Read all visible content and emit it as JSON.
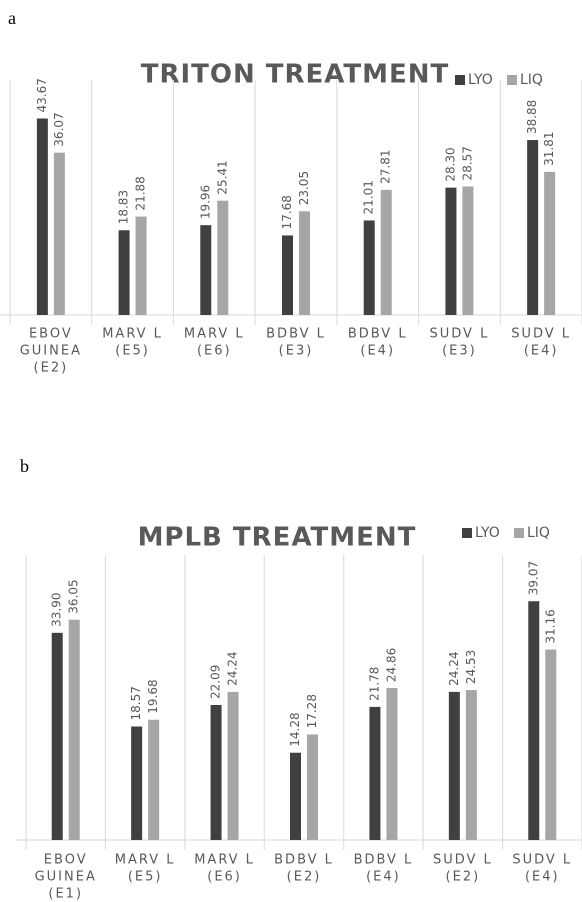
{
  "panel_labels": [
    "a",
    "b"
  ],
  "chart_data": [
    {
      "type": "bar",
      "title": "TRITON TREATMENT",
      "categories": [
        [
          "EBOV",
          "GUINEA",
          "(E2)"
        ],
        [
          "MARV L",
          "(E5)"
        ],
        [
          "MARV L",
          "(E6)"
        ],
        [
          "BDBV L",
          "(E3)"
        ],
        [
          "BDBV L",
          "(E4)"
        ],
        [
          "SUDV L",
          "(E3)"
        ],
        [
          "SUDV L",
          "(E4)"
        ]
      ],
      "series": [
        {
          "name": "LYO",
          "color": "#404040",
          "values": [
            43.67,
            18.83,
            19.96,
            17.68,
            21.01,
            28.3,
            38.88
          ],
          "value_labels": [
            "43.67",
            "18.83",
            "19.96",
            "17.68",
            "21.01",
            "28.30",
            "38.88"
          ]
        },
        {
          "name": "LIQ",
          "color": "#a6a6a6",
          "values": [
            36.07,
            21.88,
            25.41,
            23.05,
            27.81,
            28.57,
            31.81
          ],
          "value_labels": [
            "36.07",
            "21.88",
            "25.41",
            "23.05",
            "27.81",
            "28.57",
            "31.81"
          ]
        }
      ],
      "ylim": [
        0,
        50
      ],
      "legend": "top-right"
    },
    {
      "type": "bar",
      "title": "MPLB TREATMENT",
      "categories": [
        [
          "EBOV",
          "GUINEA",
          "(E1)"
        ],
        [
          "MARV L",
          "(E5)"
        ],
        [
          "MARV L",
          "(E6)"
        ],
        [
          "BDBV L",
          "(E2)"
        ],
        [
          "BDBV L",
          "(E4)"
        ],
        [
          "SUDV L",
          "(E2)"
        ],
        [
          "SUDV L",
          "(E4)"
        ]
      ],
      "series": [
        {
          "name": "LYO",
          "color": "#404040",
          "values": [
            33.9,
            18.57,
            22.09,
            14.28,
            21.78,
            24.24,
            39.07
          ],
          "value_labels": [
            "33.90",
            "18.57",
            "22.09",
            "14.28",
            "21.78",
            "24.24",
            "39.07"
          ]
        },
        {
          "name": "LIQ",
          "color": "#a6a6a6",
          "values": [
            36.05,
            19.68,
            24.24,
            17.28,
            24.86,
            24.53,
            31.16
          ],
          "value_labels": [
            "36.05",
            "19.68",
            "24.24",
            "17.28",
            "24.86",
            "24.53",
            "31.16"
          ]
        }
      ],
      "ylim": [
        0,
        45
      ],
      "legend": "top-right"
    }
  ]
}
